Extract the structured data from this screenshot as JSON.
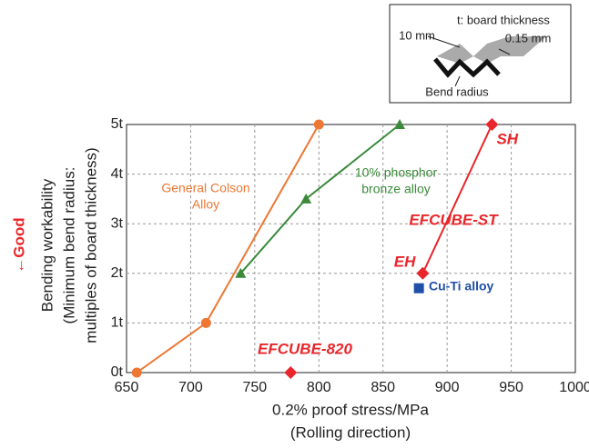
{
  "chart_data": {
    "type": "line",
    "xlabel_lines": [
      "0.2% proof stress/MPa",
      "(Rolling direction)"
    ],
    "ylabel_lines": [
      "Bending workability",
      "(Minimum bend radius:",
      "multiples of board thickness)"
    ],
    "ynote": "←Good",
    "xlim": [
      650,
      1000
    ],
    "xticks": [
      650,
      700,
      750,
      800,
      850,
      900,
      950,
      1000
    ],
    "ylim": [
      0,
      5
    ],
    "yticks": [
      {
        "value": 0,
        "label": "0t"
      },
      {
        "value": 1,
        "label": "1t"
      },
      {
        "value": 2,
        "label": "2t"
      },
      {
        "value": 3,
        "label": "3t"
      },
      {
        "value": 4,
        "label": "4t"
      },
      {
        "value": 5,
        "label": "5t"
      }
    ],
    "grid": true,
    "series": [
      {
        "label_lines": [
          "General Colson",
          "Alloy"
        ],
        "color": "#ee7733",
        "marker": "circle",
        "x": [
          658,
          712,
          800
        ],
        "values": [
          0,
          1,
          5
        ]
      },
      {
        "label_lines": [
          "10% phosphor",
          "bronze alloy"
        ],
        "color": "#3a8a3a",
        "marker": "triangle",
        "x": [
          739,
          790,
          863
        ],
        "values": [
          2,
          3.5,
          5
        ]
      },
      {
        "label_lines": [
          "EFCUBE-ST"
        ],
        "color": "#e8262b",
        "marker": "diamond",
        "x": [
          881,
          935
        ],
        "values": [
          2,
          5
        ],
        "point_labels": [
          "EH",
          "SH"
        ]
      },
      {
        "label_lines": [
          "EFCUBE-820"
        ],
        "color": "#e8262b",
        "marker": "diamond",
        "x": [
          778
        ],
        "values": [
          0
        ]
      },
      {
        "label_lines": [
          "Cu-Ti alloy"
        ],
        "color": "#1f4fa8",
        "marker": "square",
        "x": [
          878
        ],
        "values": [
          1.7
        ]
      }
    ]
  },
  "inset": {
    "thickness": "t: board thickness",
    "width": "10 mm",
    "gap": "0.15 mm",
    "radius": "Bend radius"
  }
}
